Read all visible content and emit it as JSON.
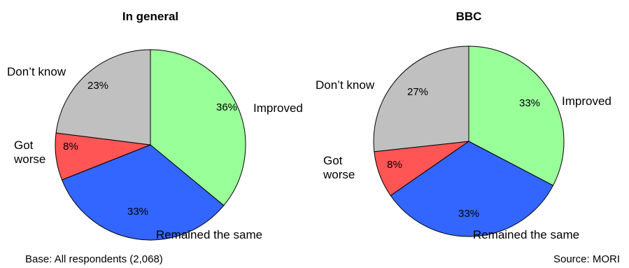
{
  "chart_data": [
    {
      "type": "pie",
      "title": "In general",
      "categories": [
        "Improved",
        "Remained the same",
        "Got worse",
        "Don’t know"
      ],
      "values": [
        36,
        33,
        8,
        23
      ],
      "value_labels": [
        "36%",
        "33%",
        "8%",
        "23%"
      ],
      "colors": [
        "#99ff99",
        "#3366ff",
        "#ff5555",
        "#c0c0c0"
      ]
    },
    {
      "type": "pie",
      "title": "BBC",
      "categories": [
        "Improved",
        "Remained the same",
        "Got worse",
        "Don’t know"
      ],
      "values": [
        33,
        33,
        8,
        27
      ],
      "value_labels": [
        "33%",
        "33%",
        "8%",
        "27%"
      ],
      "colors": [
        "#99ff99",
        "#3366ff",
        "#ff5555",
        "#c0c0c0"
      ]
    }
  ],
  "footer": {
    "base": "Base: All respondents (2,068)",
    "source": "Source: MORI"
  }
}
